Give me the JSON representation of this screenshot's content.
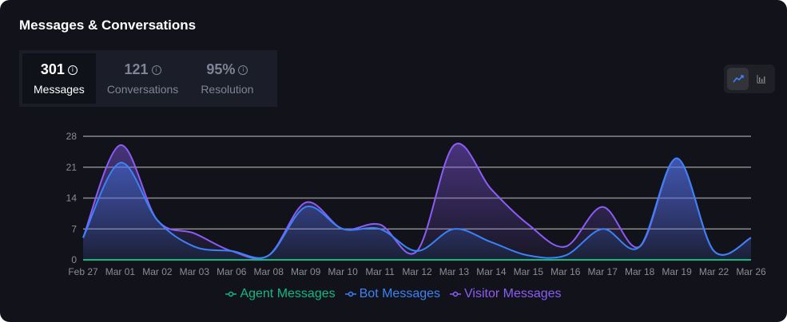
{
  "title": "Messages & Conversations",
  "stats": [
    {
      "value": "301",
      "label": "Messages",
      "active": true
    },
    {
      "value": "121",
      "label": "Conversations",
      "active": false
    },
    {
      "value": "95%",
      "label": "Resolution",
      "active": false
    }
  ],
  "view_toggle": [
    {
      "icon": "line-chart-icon",
      "active": true
    },
    {
      "icon": "bar-chart-icon",
      "active": false
    }
  ],
  "chart_data": {
    "type": "area",
    "categories": [
      "Feb 27",
      "Mar 01",
      "Mar 02",
      "Mar 03",
      "Mar 06",
      "Mar 08",
      "Mar 09",
      "Mar 10",
      "Mar 11",
      "Mar 12",
      "Mar 13",
      "Mar 14",
      "Mar 15",
      "Mar 16",
      "Mar 17",
      "Mar 18",
      "Mar 19",
      "Mar 22",
      "Mar 26"
    ],
    "yticks": [
      0,
      7,
      14,
      21,
      28
    ],
    "ylim": [
      0,
      28
    ],
    "grid": true,
    "legend": "bottom",
    "series": [
      {
        "name": "Agent Messages",
        "color": "#10b981",
        "values": [
          0,
          0,
          0,
          0,
          0,
          0,
          0,
          0,
          0,
          0,
          0,
          0,
          0,
          0,
          0,
          0,
          0,
          0,
          0
        ]
      },
      {
        "name": "Bot Messages",
        "color": "#3b82f6",
        "values": [
          5,
          22,
          9,
          3,
          2,
          1,
          12,
          7,
          7,
          2,
          7,
          4,
          1,
          1,
          7,
          3,
          23,
          2,
          5
        ]
      },
      {
        "name": "Visitor Messages",
        "color": "#8b5cf6",
        "values": [
          5,
          26,
          9,
          6,
          2,
          1,
          13,
          7,
          8,
          2,
          26,
          16,
          8,
          3,
          12,
          3,
          23,
          2,
          5
        ]
      }
    ]
  }
}
